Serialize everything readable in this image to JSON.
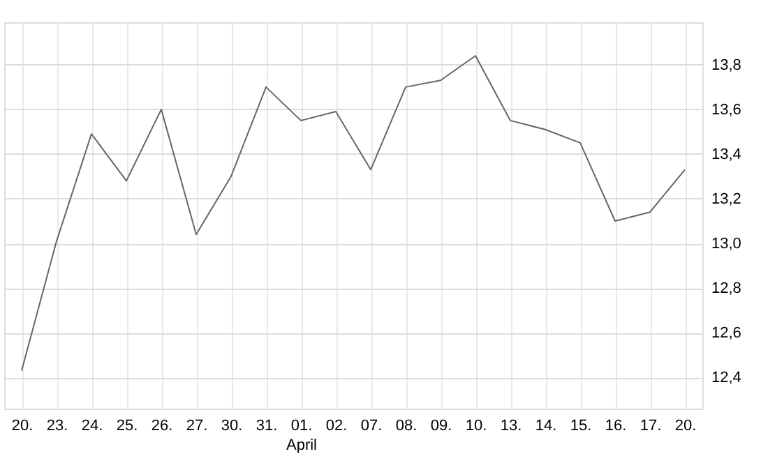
{
  "chart_data": {
    "type": "line",
    "categories": [
      "20.",
      "23.",
      "24.",
      "25.",
      "26.",
      "27.",
      "30.",
      "31.",
      "01.\nApril",
      "02.",
      "07.",
      "08.",
      "09.",
      "10.",
      "13.",
      "14.",
      "15.",
      "16.",
      "17.",
      "20."
    ],
    "series": [
      {
        "color": "#666666",
        "values": [
          12.43,
          13.01,
          13.49,
          13.28,
          13.6,
          13.04,
          13.3,
          13.7,
          13.55,
          13.59,
          13.33,
          13.7,
          13.73,
          13.84,
          13.55,
          13.51,
          13.45,
          13.1,
          13.14,
          13.33
        ]
      }
    ],
    "ylim": [
      12.26,
      13.99
    ],
    "yticks": [
      {
        "value": 12.4,
        "label": "12,4"
      },
      {
        "value": 12.6,
        "label": "12,6"
      },
      {
        "value": 12.8,
        "label": "12,8"
      },
      {
        "value": 13.0,
        "label": "13,0"
      },
      {
        "value": 13.2,
        "label": "13,2"
      },
      {
        "value": 13.4,
        "label": "13,4"
      },
      {
        "value": 13.6,
        "label": "13,6"
      },
      {
        "value": 13.8,
        "label": "13,8"
      }
    ],
    "grid": true,
    "marker": "none",
    "line_style": "solid",
    "legend": false
  }
}
